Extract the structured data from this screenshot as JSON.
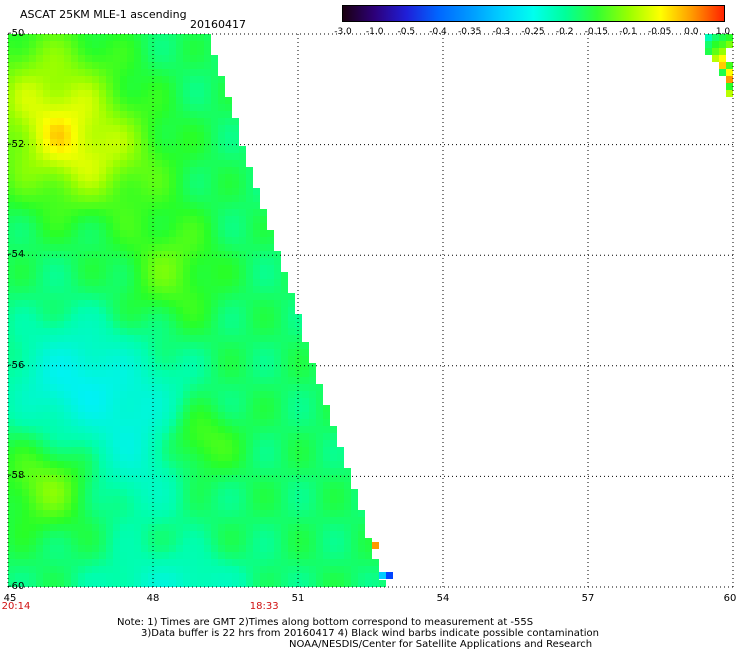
{
  "header": {
    "title": "ASCAT 25KM MLE-1 ascending",
    "date": "20160417"
  },
  "colorbar": {
    "labels": [
      "-3.0",
      "-1.0",
      "-0.5",
      "-0.4",
      "-0.35",
      "-0.3",
      "-0.25",
      "-0.2",
      "-0.15",
      "-0.1",
      "-0.05",
      "0.0",
      "1.0"
    ],
    "colors": [
      "#1a0010",
      "#2d007a",
      "#1f1fd8",
      "#0066ff",
      "#0099ff",
      "#00d0ff",
      "#00ffee",
      "#00ff9a",
      "#33ff33",
      "#99ff00",
      "#ffff00",
      "#ff9900",
      "#ff2200"
    ]
  },
  "map": {
    "lat_labels": [
      "-50",
      "-52",
      "-54",
      "-56",
      "-58",
      "-60"
    ],
    "lon_labels": [
      "45",
      "48",
      "51",
      "54",
      "57",
      "60"
    ],
    "lat_range": [
      -60,
      -50
    ],
    "lon_range": [
      45,
      60
    ],
    "time_labels": [
      {
        "text": "20:14",
        "lon": 45
      },
      {
        "text": "18:33",
        "lon": 50.3
      }
    ]
  },
  "notes": {
    "line1": "Note: 1) Times are GMT 2)Times along bottom correspond to measurement at -55S",
    "line2": "3)Data buffer is 22 hrs from 20160417 4) Black wind barbs indicate possible contamination",
    "line3": "NOAA/NESDIS/Center for Satellite Applications and Research"
  }
}
